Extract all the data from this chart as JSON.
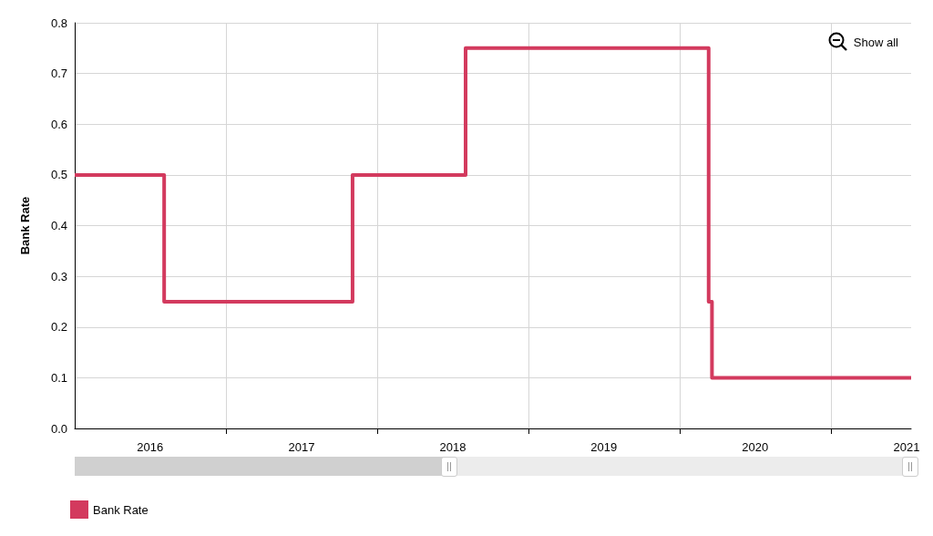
{
  "chart_data": {
    "type": "step",
    "ylabel": "Bank Rate",
    "x": [
      "2016-01-01",
      "2016-08-04",
      "2017-11-02",
      "2018-08-02",
      "2020-03-11",
      "2020-03-19",
      "2021-07-13"
    ],
    "series": [
      {
        "name": "Bank Rate",
        "color": "#d33a5e",
        "values": [
          0.5,
          0.25,
          0.5,
          0.75,
          0.25,
          0.1,
          0.1
        ]
      }
    ],
    "xlim": [
      "2016-01-01",
      "2021-07-13"
    ],
    "xticks": [
      {
        "value": "2016-07-01",
        "label": "2016"
      },
      {
        "value": "2017-01-01",
        "label": null
      },
      {
        "value": "2017-07-02",
        "label": "2017"
      },
      {
        "value": "2018-01-01",
        "label": null
      },
      {
        "value": "2018-07-02",
        "label": "2018"
      },
      {
        "value": "2019-01-01",
        "label": null
      },
      {
        "value": "2019-07-02",
        "label": "2019"
      },
      {
        "value": "2020-01-01",
        "label": null
      },
      {
        "value": "2020-07-01",
        "label": "2020"
      },
      {
        "value": "2021-01-01",
        "label": null
      },
      {
        "value": "2021-07-02",
        "label": "2021"
      }
    ],
    "ylim": [
      0,
      0.8
    ],
    "yticks": [
      {
        "value": 0,
        "label": "0.0"
      },
      0.1,
      0.2,
      0.3,
      0.4,
      0.5,
      0.6,
      0.7,
      0.8
    ],
    "grid": true,
    "legend": "bottom left",
    "marker": "none",
    "line_style": "solid",
    "annotations": [
      "Show all"
    ]
  }
}
